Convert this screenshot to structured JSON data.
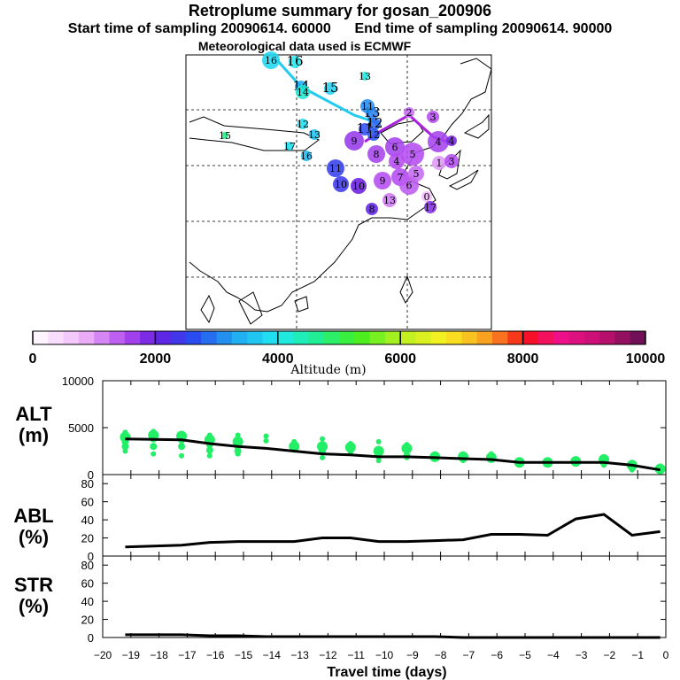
{
  "header": {
    "title": "Retroplume summary for gosan_200906",
    "start_label": "Start time of sampling 20090614. 60000",
    "end_label": "End time of sampling 20090614. 90000",
    "met_label": "Meteorological data used is ECMWF"
  },
  "colors": {
    "axis": "#000000",
    "ensemble_points": "#22ee66",
    "median_line": "#000000",
    "map_coast": "#000000",
    "plume_main_line": "#22ccee",
    "plume_purple_line": "#aa22dd"
  },
  "colorbar": {
    "label": "Altitude (m)",
    "min": 0,
    "max": 10000,
    "tick_labels": [
      "0",
      "2000",
      "4000",
      "6000",
      "8000",
      "10000"
    ],
    "tick_values": [
      0,
      2000,
      4000,
      6000,
      8000,
      10000
    ],
    "stops": [
      {
        "v": 0,
        "c": "#ffffff"
      },
      {
        "v": 800,
        "c": "#f0b8f8"
      },
      {
        "v": 1500,
        "c": "#b44cf0"
      },
      {
        "v": 2000,
        "c": "#6a1ee0"
      },
      {
        "v": 2600,
        "c": "#2a48f0"
      },
      {
        "v": 3300,
        "c": "#20a8f0"
      },
      {
        "v": 4000,
        "c": "#20e8f0"
      },
      {
        "v": 4600,
        "c": "#20ee98"
      },
      {
        "v": 5300,
        "c": "#40ee20"
      },
      {
        "v": 6000,
        "c": "#b8f020"
      },
      {
        "v": 6700,
        "c": "#f8f020"
      },
      {
        "v": 7300,
        "c": "#f8b020"
      },
      {
        "v": 7800,
        "c": "#f85020"
      },
      {
        "v": 8000,
        "c": "#f81010"
      },
      {
        "v": 8600,
        "c": "#f0108a"
      },
      {
        "v": 9300,
        "c": "#c01070"
      },
      {
        "v": 10000,
        "c": "#601050"
      }
    ]
  },
  "map": {
    "main_path_labels": [
      {
        "t": "16",
        "alt": 4000
      },
      {
        "t": "15",
        "alt": 3700
      },
      {
        "t": "14",
        "alt": 3300
      },
      {
        "t": "13",
        "alt": 3000
      },
      {
        "t": "12",
        "alt": 2800
      },
      {
        "t": "11",
        "alt": 2600
      }
    ],
    "scatter_labels": [
      {
        "t": "16",
        "alt": 3800
      },
      {
        "t": "14",
        "alt": 4200
      },
      {
        "t": "13",
        "alt": 4100
      },
      {
        "t": "12",
        "alt": 3900
      },
      {
        "t": "15",
        "alt": 4700
      },
      {
        "t": "17",
        "alt": 3900
      },
      {
        "t": "13",
        "alt": 3600
      },
      {
        "t": "16",
        "alt": 3500
      },
      {
        "t": "11",
        "alt": 2500
      },
      {
        "t": "10",
        "alt": 2400
      },
      {
        "t": "12",
        "alt": 2700
      },
      {
        "t": "11",
        "alt": 3100
      },
      {
        "t": "9",
        "alt": 1700
      },
      {
        "t": "8",
        "alt": 1600
      },
      {
        "t": "7",
        "alt": 1500
      },
      {
        "t": "6",
        "alt": 1400
      },
      {
        "t": "5",
        "alt": 1300
      },
      {
        "t": "4",
        "alt": 1600
      },
      {
        "t": "3",
        "alt": 1500
      },
      {
        "t": "2",
        "alt": 1300
      },
      {
        "t": "1",
        "alt": 1000
      },
      {
        "t": "0",
        "alt": 800
      },
      {
        "t": "6",
        "alt": 1600
      },
      {
        "t": "5",
        "alt": 1500
      },
      {
        "t": "9",
        "alt": 1500
      },
      {
        "t": "3",
        "alt": 1500
      },
      {
        "t": "4",
        "alt": 1500
      },
      {
        "t": "10",
        "alt": 2000
      },
      {
        "t": "13",
        "alt": 1200
      },
      {
        "t": "17",
        "alt": 1800
      },
      {
        "t": "8",
        "alt": 2100
      },
      {
        "t": "4",
        "alt": 1900
      }
    ]
  },
  "chart_data": [
    {
      "type": "scatter",
      "panel": "ALT",
      "ylabel": "ALT\n(m)",
      "ylabel_lines": [
        "ALT",
        "(m)"
      ],
      "xlabel": "Travel time (days)",
      "xlim": [
        -20,
        0
      ],
      "ylim": [
        0,
        10000
      ],
      "yticks": [
        0,
        5000,
        10000
      ],
      "ytick_labels": [
        "0",
        "5000",
        "10000"
      ],
      "median": {
        "x": [
          -19.2,
          -18.2,
          -17.2,
          -16.2,
          -15.2,
          -14.2,
          -13.2,
          -12.2,
          -11.2,
          -10.2,
          -9.2,
          -8.2,
          -7.2,
          -6.2,
          -5.2,
          -4.2,
          -3.2,
          -2.2,
          -1.2,
          -0.2
        ],
        "y": [
          3800,
          3750,
          3700,
          3300,
          3000,
          2800,
          2500,
          2200,
          2100,
          1900,
          1900,
          1800,
          1700,
          1600,
          1300,
          1300,
          1300,
          1300,
          1000,
          500
        ]
      },
      "ensemble": [
        {
          "x": -19.2,
          "y": [
            4500,
            4000,
            3500,
            3000,
            2500
          ]
        },
        {
          "x": -18.2,
          "y": [
            4600,
            4200,
            3800,
            3000,
            2200
          ]
        },
        {
          "x": -17.2,
          "y": [
            4400,
            4100,
            3700,
            3000,
            2000
          ]
        },
        {
          "x": -16.2,
          "y": [
            4200,
            3700,
            3200,
            2600,
            2000
          ]
        },
        {
          "x": -15.2,
          "y": [
            4200,
            3500,
            3000,
            2500,
            2200
          ]
        },
        {
          "x": -14.2,
          "y": [
            4100,
            3600
          ]
        },
        {
          "x": -13.2,
          "y": [
            3500,
            3000,
            2600
          ]
        },
        {
          "x": -12.2,
          "y": [
            3800,
            3000,
            2500,
            1800
          ]
        },
        {
          "x": -11.2,
          "y": [
            3300,
            2900,
            2300
          ]
        },
        {
          "x": -10.2,
          "y": [
            3500,
            2500,
            2000,
            1500
          ]
        },
        {
          "x": -9.2,
          "y": [
            3200,
            2800,
            2000,
            1800
          ]
        },
        {
          "x": -8.2,
          "y": [
            2200,
            1900,
            1700
          ]
        },
        {
          "x": -7.2,
          "y": [
            2200,
            1900,
            1700,
            1500
          ]
        },
        {
          "x": -6.2,
          "y": [
            2200,
            1800,
            1600
          ]
        },
        {
          "x": -5.2,
          "y": [
            1500,
            1300,
            1100
          ]
        },
        {
          "x": -4.2,
          "y": [
            1400,
            1300,
            1200
          ]
        },
        {
          "x": -3.2,
          "y": [
            1500,
            1400,
            1300,
            1200
          ]
        },
        {
          "x": -2.2,
          "y": [
            1900,
            1600,
            1400,
            1200,
            1000
          ]
        },
        {
          "x": -1.2,
          "y": [
            1300,
            1000,
            700,
            500
          ]
        },
        {
          "x": -0.2,
          "y": [
            900,
            600,
            300
          ]
        }
      ]
    },
    {
      "type": "line",
      "panel": "ABL",
      "ylabel": "ABL\n(%)",
      "ylabel_lines": [
        "ABL",
        "(%)"
      ],
      "xlim": [
        -20,
        0
      ],
      "ylim": [
        0,
        90
      ],
      "yticks": [
        0,
        20,
        40,
        60,
        80
      ],
      "ytick_labels": [
        "0",
        "20",
        "40",
        "60",
        "80"
      ],
      "x": [
        -19.2,
        -18.2,
        -17.2,
        -16.2,
        -15.2,
        -14.2,
        -13.2,
        -12.2,
        -11.2,
        -10.2,
        -9.2,
        -8.2,
        -7.2,
        -6.2,
        -5.2,
        -4.2,
        -3.2,
        -2.2,
        -1.2,
        -0.2
      ],
      "y": [
        10,
        11,
        12,
        15,
        16,
        16,
        16,
        20,
        20,
        16,
        16,
        17,
        18,
        24,
        24,
        23,
        41,
        46,
        23,
        27
      ]
    },
    {
      "type": "line",
      "panel": "STR",
      "ylabel": "STR\n(%)",
      "ylabel_lines": [
        "STR",
        "(%)"
      ],
      "xlim": [
        -20,
        0
      ],
      "ylim": [
        0,
        90
      ],
      "yticks": [
        0,
        20,
        40,
        60,
        80
      ],
      "ytick_labels": [
        "0",
        "20",
        "40",
        "60",
        "80"
      ],
      "x": [
        -19.2,
        -18.2,
        -17.2,
        -16.2,
        -15.2,
        -14.2,
        -13.2,
        -12.2,
        -11.2,
        -10.2,
        -9.2,
        -8.2,
        -7.2,
        -6.2,
        -5.2,
        -4.2,
        -3.2,
        -2.2,
        -1.2,
        -0.2
      ],
      "y": [
        3,
        3,
        3,
        2,
        2,
        1,
        1,
        1,
        1,
        1,
        1,
        1,
        0,
        0,
        0,
        0,
        0,
        0,
        0,
        0
      ]
    }
  ],
  "xaxis": {
    "ticks": [
      -20,
      -19,
      -18,
      -17,
      -16,
      -15,
      -14,
      -13,
      -12,
      -11,
      -10,
      -9,
      -8,
      -7,
      -6,
      -5,
      -4,
      -3,
      -2,
      -1,
      0
    ],
    "tick_labels": [
      "−20",
      "−19",
      "−18",
      "−17",
      "−16",
      "−15",
      "−14",
      "−13",
      "−12",
      "−11",
      "−10",
      "−9",
      "−8",
      "−7",
      "−6",
      "−5",
      "−4",
      "−3",
      "−2",
      "−1",
      "0"
    ]
  }
}
